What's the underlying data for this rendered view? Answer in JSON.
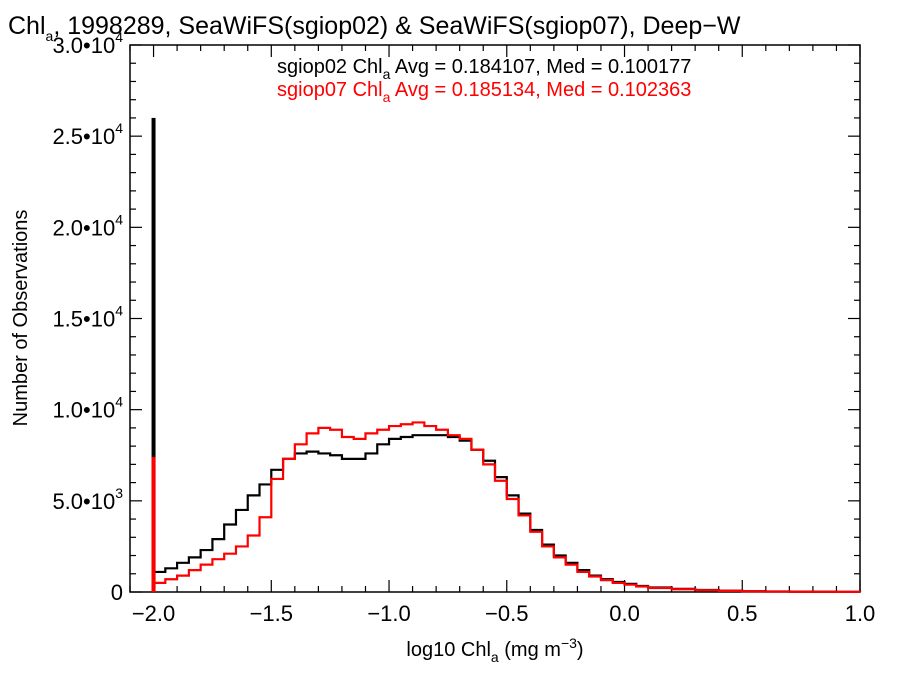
{
  "chart_data": {
    "type": "line",
    "title_parts": [
      "Chl",
      "a",
      ", 1998289, SeaWiFS(sgiop02) & SeaWiFS(sgiop07), Deep−W"
    ],
    "xlabel_parts": [
      "log10 Chl",
      "a",
      " (mg m",
      "−3",
      ")"
    ],
    "ylabel": "Number of Observations",
    "xlim": [
      -2.1,
      1.0
    ],
    "ylim": [
      0,
      30000
    ],
    "x_ticks": [
      {
        "value": -2.0,
        "label": "−2.0"
      },
      {
        "value": -1.5,
        "label": "−1.5"
      },
      {
        "value": -1.0,
        "label": "−1.0"
      },
      {
        "value": -0.5,
        "label": "−0.5"
      },
      {
        "value": 0.0,
        "label": "0.0"
      },
      {
        "value": 0.5,
        "label": "0.5"
      },
      {
        "value": 1.0,
        "label": "1.0"
      }
    ],
    "y_ticks": [
      {
        "value": 0,
        "base": "0",
        "exp": ""
      },
      {
        "value": 5000,
        "base": "5.0•10",
        "exp": "3"
      },
      {
        "value": 10000,
        "base": "1.0•10",
        "exp": "4"
      },
      {
        "value": 15000,
        "base": "1.5•10",
        "exp": "4"
      },
      {
        "value": 20000,
        "base": "2.0•10",
        "exp": "4"
      },
      {
        "value": 25000,
        "base": "2.5•10",
        "exp": "4"
      },
      {
        "value": 30000,
        "base": "3.0•10",
        "exp": "4"
      }
    ],
    "annotations": [
      {
        "color": "#000000",
        "prefix": "sgiop02 Chl",
        "sub": "a",
        "rest": " Avg = 0.184107, Med = 0.100177"
      },
      {
        "color": "#ff0000",
        "prefix": "sgiop07 Chl",
        "sub": "a",
        "rest": " Avg = 0.185134, Med = 0.102363"
      }
    ],
    "series": [
      {
        "color": "#000000",
        "spike": {
          "x": -2.0,
          "y": 26000
        },
        "x": [
          -2.0,
          -1.95,
          -1.9,
          -1.85,
          -1.8,
          -1.75,
          -1.7,
          -1.65,
          -1.6,
          -1.55,
          -1.5,
          -1.45,
          -1.4,
          -1.35,
          -1.3,
          -1.25,
          -1.2,
          -1.15,
          -1.1,
          -1.05,
          -1.0,
          -0.95,
          -0.9,
          -0.85,
          -0.8,
          -0.75,
          -0.7,
          -0.65,
          -0.6,
          -0.55,
          -0.5,
          -0.45,
          -0.4,
          -0.35,
          -0.3,
          -0.25,
          -0.2,
          -0.15,
          -0.1,
          -0.05,
          0.0,
          0.05,
          0.1,
          0.2,
          0.3,
          0.4,
          0.5,
          0.6,
          0.7,
          0.8,
          0.9,
          1.0
        ],
        "y": [
          1100,
          1300,
          1600,
          1900,
          2300,
          2900,
          3700,
          4500,
          5300,
          5900,
          6700,
          7300,
          7600,
          7700,
          7600,
          7500,
          7300,
          7300,
          7600,
          8100,
          8400,
          8500,
          8600,
          8600,
          8600,
          8500,
          8300,
          7800,
          7200,
          6300,
          5300,
          4300,
          3400,
          2600,
          2000,
          1600,
          1200,
          900,
          700,
          550,
          450,
          330,
          250,
          170,
          110,
          70,
          40,
          30,
          20,
          15,
          10,
          5
        ]
      },
      {
        "color": "#ff0000",
        "spike": {
          "x": -2.0,
          "y": 7400
        },
        "x": [
          -2.0,
          -1.95,
          -1.9,
          -1.85,
          -1.8,
          -1.75,
          -1.7,
          -1.65,
          -1.6,
          -1.55,
          -1.5,
          -1.45,
          -1.4,
          -1.35,
          -1.3,
          -1.25,
          -1.2,
          -1.15,
          -1.1,
          -1.05,
          -1.0,
          -0.95,
          -0.9,
          -0.85,
          -0.8,
          -0.75,
          -0.7,
          -0.65,
          -0.6,
          -0.55,
          -0.5,
          -0.45,
          -0.4,
          -0.35,
          -0.3,
          -0.25,
          -0.2,
          -0.15,
          -0.1,
          -0.05,
          0.0,
          0.05,
          0.1,
          0.2,
          0.3,
          0.4,
          0.5,
          0.6,
          0.7,
          0.8,
          0.9,
          1.0
        ],
        "y": [
          500,
          700,
          900,
          1200,
          1500,
          1800,
          2100,
          2500,
          3100,
          4100,
          6200,
          7300,
          8100,
          8700,
          9000,
          8900,
          8500,
          8400,
          8700,
          8900,
          9100,
          9200,
          9300,
          9100,
          8900,
          8600,
          8400,
          7800,
          7000,
          6100,
          5100,
          4200,
          3300,
          2500,
          1900,
          1500,
          1100,
          850,
          650,
          500,
          400,
          300,
          220,
          150,
          100,
          60,
          35,
          25,
          15,
          10,
          8,
          5
        ]
      }
    ]
  }
}
